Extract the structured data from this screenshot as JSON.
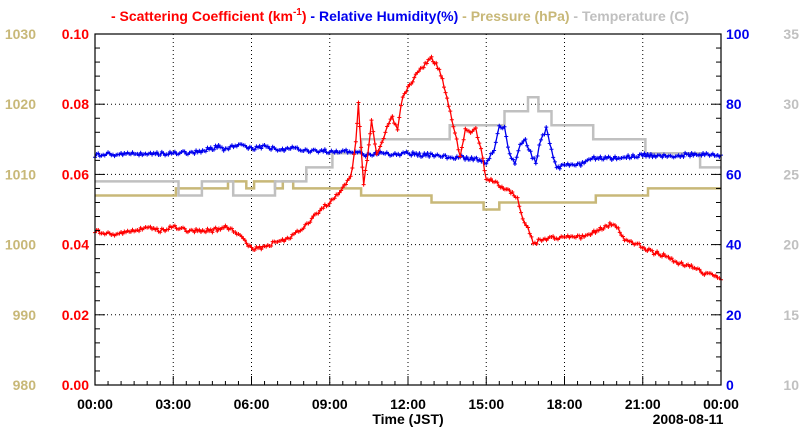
{
  "chart_data": {
    "type": "line",
    "xlabel": "Time (JST)",
    "date_label": "2008-08-11",
    "x_range_hours": [
      0,
      24
    ],
    "x_ticks": [
      {
        "h": 0,
        "label": "00:00"
      },
      {
        "h": 3,
        "label": "03:00"
      },
      {
        "h": 6,
        "label": "06:00"
      },
      {
        "h": 9,
        "label": "09:00"
      },
      {
        "h": 12,
        "label": "12:00"
      },
      {
        "h": 15,
        "label": "15:00"
      },
      {
        "h": 18,
        "label": "18:00"
      },
      {
        "h": 21,
        "label": "21:00"
      },
      {
        "h": 24,
        "label": "00:00"
      }
    ],
    "axes": {
      "scattering": {
        "range": [
          0,
          0.1
        ],
        "ticks": [
          "0.00",
          "0.02",
          "0.04",
          "0.06",
          "0.08",
          "0.10"
        ],
        "color": "#ff0000"
      },
      "pressure": {
        "range": [
          980,
          1030
        ],
        "ticks": [
          "980",
          "990",
          "1000",
          "1010",
          "1020",
          "1030"
        ],
        "color": "#c8b878"
      },
      "humidity": {
        "range": [
          0,
          100
        ],
        "ticks": [
          "0",
          "20",
          "40",
          "60",
          "80",
          "100"
        ],
        "color": "#0000ee"
      },
      "temperature": {
        "range": [
          10,
          35
        ],
        "ticks": [
          "10",
          "15",
          "20",
          "25",
          "30",
          "35"
        ],
        "color": "#c0c0c0"
      }
    },
    "legend": [
      {
        "key": "scattering",
        "prefix": "- ",
        "label": "Scattering Coefficient (km",
        "sup": "-1",
        "suffix": ")"
      },
      {
        "key": "humidity",
        "prefix": "- ",
        "label": "Relative Humidity(%)"
      },
      {
        "key": "pressure",
        "prefix": "- ",
        "label": "Pressure (hPa)"
      },
      {
        "key": "temperature",
        "prefix": "- ",
        "label": "Temperature (C)"
      }
    ],
    "series": [
      {
        "name": "Pressure (hPa)",
        "axis": "pressure",
        "style": "step",
        "points": [
          [
            0,
            1007
          ],
          [
            3.1,
            1007
          ],
          [
            3.1,
            1008
          ],
          [
            5.1,
            1008
          ],
          [
            5.1,
            1009
          ],
          [
            5.8,
            1009
          ],
          [
            5.8,
            1008
          ],
          [
            6.1,
            1008
          ],
          [
            6.1,
            1009
          ],
          [
            6.9,
            1009
          ],
          [
            6.9,
            1008
          ],
          [
            7.2,
            1008
          ],
          [
            7.2,
            1009
          ],
          [
            7.6,
            1009
          ],
          [
            7.6,
            1008
          ],
          [
            10.2,
            1008
          ],
          [
            10.2,
            1007
          ],
          [
            12.9,
            1007
          ],
          [
            12.9,
            1006
          ],
          [
            14.9,
            1006
          ],
          [
            14.9,
            1005
          ],
          [
            15.5,
            1005
          ],
          [
            15.5,
            1006
          ],
          [
            19.2,
            1006
          ],
          [
            19.2,
            1007
          ],
          [
            21.2,
            1007
          ],
          [
            21.2,
            1008
          ],
          [
            24,
            1008
          ]
        ]
      },
      {
        "name": "Temperature (C)",
        "axis": "temperature",
        "style": "step",
        "points": [
          [
            0,
            24.5
          ],
          [
            3.2,
            24.5
          ],
          [
            3.2,
            23.5
          ],
          [
            4.1,
            23.5
          ],
          [
            4.1,
            24.5
          ],
          [
            5.3,
            24.5
          ],
          [
            5.3,
            23.5
          ],
          [
            6.9,
            23.5
          ],
          [
            6.9,
            24.5
          ],
          [
            8.1,
            24.5
          ],
          [
            8.1,
            25.5
          ],
          [
            9.1,
            25.5
          ],
          [
            9.1,
            26.5
          ],
          [
            10.2,
            26.5
          ],
          [
            10.2,
            27.5
          ],
          [
            13.6,
            27.5
          ],
          [
            13.6,
            28.5
          ],
          [
            15.7,
            28.5
          ],
          [
            15.7,
            29.5
          ],
          [
            16.6,
            29.5
          ],
          [
            16.6,
            30.5
          ],
          [
            17.0,
            30.5
          ],
          [
            17.0,
            29.5
          ],
          [
            17.5,
            29.5
          ],
          [
            17.5,
            28.5
          ],
          [
            19.1,
            28.5
          ],
          [
            19.1,
            27.5
          ],
          [
            21.1,
            27.5
          ],
          [
            21.1,
            26.5
          ],
          [
            23.2,
            26.5
          ],
          [
            23.2,
            25.5
          ],
          [
            24,
            25.5
          ]
        ]
      },
      {
        "name": "Relative Humidity(%)",
        "axis": "humidity",
        "style": "markers",
        "points": [
          [
            0,
            65.5
          ],
          [
            0.5,
            65.8
          ],
          [
            1,
            65.5
          ],
          [
            1.5,
            66
          ],
          [
            2,
            65.8
          ],
          [
            2.5,
            66
          ],
          [
            3,
            65.9
          ],
          [
            3.5,
            66.1
          ],
          [
            4,
            66.5
          ],
          [
            4.5,
            67.5
          ],
          [
            4.8,
            68
          ],
          [
            5,
            67
          ],
          [
            5.5,
            68.5
          ],
          [
            6,
            67.5
          ],
          [
            6.5,
            67.8
          ],
          [
            7,
            67
          ],
          [
            7.5,
            67.5
          ],
          [
            8,
            67
          ],
          [
            8.5,
            66.8
          ],
          [
            9,
            66.5
          ],
          [
            9.5,
            66.5
          ],
          [
            10,
            66.2
          ],
          [
            10.5,
            65.5
          ],
          [
            11,
            66
          ],
          [
            11.5,
            65.5
          ],
          [
            12,
            66
          ],
          [
            12.5,
            65.5
          ],
          [
            13,
            65.5
          ],
          [
            13.5,
            64.8
          ],
          [
            14,
            64.8
          ],
          [
            14.5,
            64.5
          ],
          [
            15,
            63.5
          ],
          [
            15.3,
            67
          ],
          [
            15.5,
            74
          ],
          [
            15.7,
            73
          ],
          [
            15.9,
            66
          ],
          [
            16.1,
            63
          ],
          [
            16.3,
            69
          ],
          [
            16.5,
            70
          ],
          [
            16.7,
            66
          ],
          [
            16.9,
            63.5
          ],
          [
            17.1,
            70
          ],
          [
            17.3,
            73
          ],
          [
            17.5,
            67
          ],
          [
            17.7,
            62
          ],
          [
            18,
            62.5
          ],
          [
            18.5,
            62.5
          ],
          [
            19,
            64.5
          ],
          [
            19.5,
            64.8
          ],
          [
            20,
            64.5
          ],
          [
            20.5,
            65
          ],
          [
            21,
            65.5
          ],
          [
            21.5,
            65.5
          ],
          [
            22,
            65.3
          ],
          [
            22.5,
            65.5
          ],
          [
            23,
            65.8
          ],
          [
            23.5,
            65.5
          ],
          [
            24,
            65.5
          ]
        ]
      },
      {
        "name": "Scattering Coefficient (km-1)",
        "axis": "scattering",
        "style": "markers",
        "points": [
          [
            0,
            0.044
          ],
          [
            0.5,
            0.043
          ],
          [
            1,
            0.043
          ],
          [
            1.5,
            0.044
          ],
          [
            2,
            0.045
          ],
          [
            2.5,
            0.044
          ],
          [
            3,
            0.045
          ],
          [
            3.5,
            0.044
          ],
          [
            4,
            0.044
          ],
          [
            4.5,
            0.044
          ],
          [
            5,
            0.045
          ],
          [
            5.5,
            0.043
          ],
          [
            6,
            0.039
          ],
          [
            6.5,
            0.039
          ],
          [
            7,
            0.041
          ],
          [
            7.5,
            0.042
          ],
          [
            8,
            0.045
          ],
          [
            8.5,
            0.049
          ],
          [
            9,
            0.052
          ],
          [
            9.5,
            0.056
          ],
          [
            9.8,
            0.059
          ],
          [
            10,
            0.069
          ],
          [
            10.1,
            0.08
          ],
          [
            10.2,
            0.068
          ],
          [
            10.3,
            0.057
          ],
          [
            10.5,
            0.068
          ],
          [
            10.6,
            0.075
          ],
          [
            10.8,
            0.066
          ],
          [
            11,
            0.069
          ],
          [
            11.2,
            0.074
          ],
          [
            11.4,
            0.076
          ],
          [
            11.6,
            0.073
          ],
          [
            11.8,
            0.082
          ],
          [
            12,
            0.085
          ],
          [
            12.3,
            0.088
          ],
          [
            12.6,
            0.091
          ],
          [
            12.9,
            0.093
          ],
          [
            13.2,
            0.09
          ],
          [
            13.5,
            0.082
          ],
          [
            13.8,
            0.072
          ],
          [
            14,
            0.065
          ],
          [
            14.2,
            0.073
          ],
          [
            14.4,
            0.072
          ],
          [
            14.6,
            0.073
          ],
          [
            14.8,
            0.067
          ],
          [
            15,
            0.059
          ],
          [
            15.3,
            0.058
          ],
          [
            15.6,
            0.056
          ],
          [
            16,
            0.055
          ],
          [
            16.2,
            0.053
          ],
          [
            16.4,
            0.047
          ],
          [
            16.6,
            0.045
          ],
          [
            16.8,
            0.04
          ],
          [
            17,
            0.041
          ],
          [
            17.5,
            0.042
          ],
          [
            18,
            0.042
          ],
          [
            18.5,
            0.042
          ],
          [
            19,
            0.043
          ],
          [
            19.5,
            0.045
          ],
          [
            19.8,
            0.046
          ],
          [
            20,
            0.045
          ],
          [
            20.3,
            0.041
          ],
          [
            20.8,
            0.04
          ],
          [
            21.3,
            0.038
          ],
          [
            21.8,
            0.037
          ],
          [
            22.3,
            0.035
          ],
          [
            22.8,
            0.034
          ],
          [
            23.3,
            0.032
          ],
          [
            23.8,
            0.031
          ],
          [
            24,
            0.03
          ]
        ]
      }
    ]
  }
}
